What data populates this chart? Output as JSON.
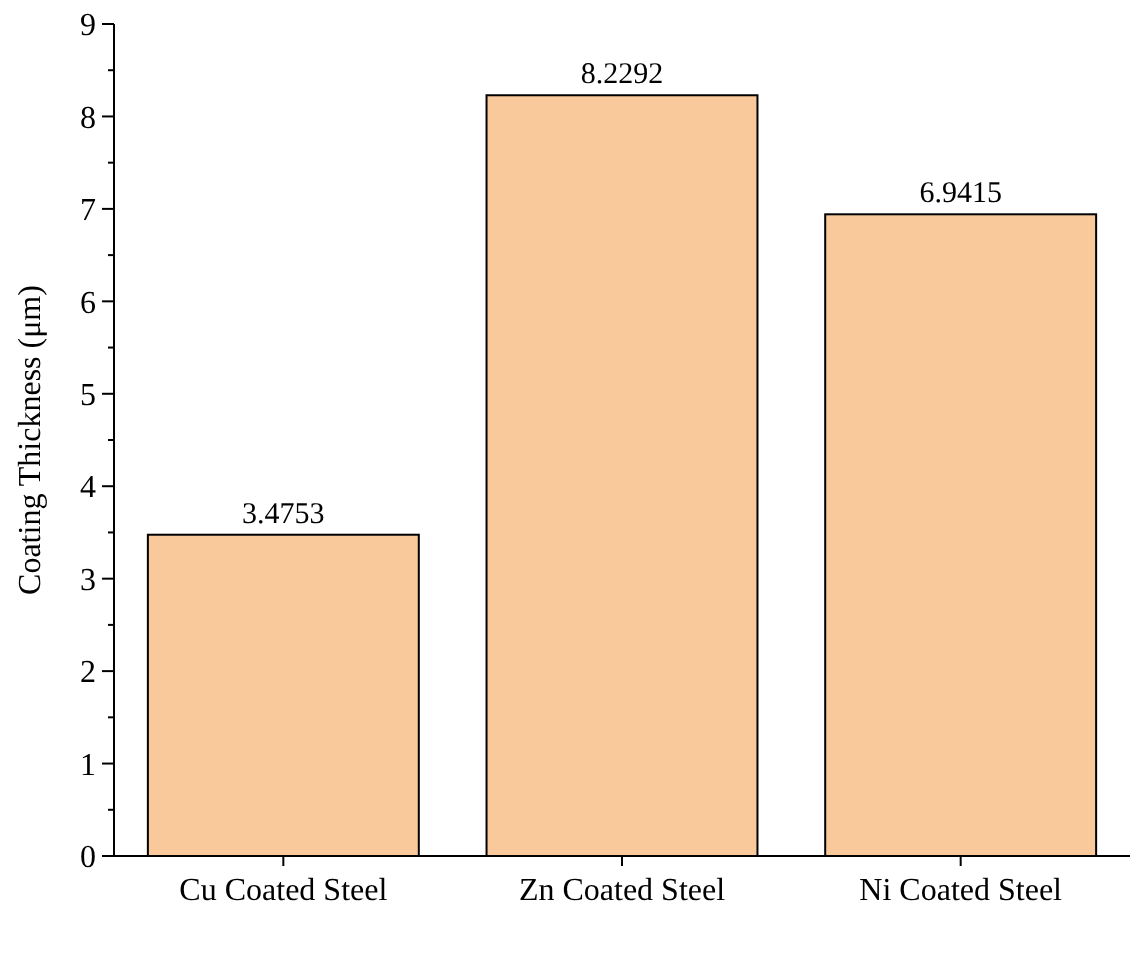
{
  "chart_data": {
    "type": "bar",
    "ylabel": "Coating Thickness (μm)",
    "categories": [
      "Cu Coated Steel",
      "Zn Coated Steel",
      "Ni Coated Steel"
    ],
    "values": [
      3.4753,
      8.2292,
      6.9415
    ],
    "color": "#f9c89b",
    "data_labels": true,
    "grid": false,
    "ylim": [
      0,
      9
    ],
    "yticks": [
      0,
      {
        "value": 0.5,
        "label": null
      },
      1,
      {
        "value": 1.5,
        "label": null
      },
      2,
      {
        "value": 2.5,
        "label": null
      },
      3,
      {
        "value": 3.5,
        "label": null
      },
      4,
      {
        "value": 4.5,
        "label": null
      },
      5,
      {
        "value": 5.5,
        "label": null
      },
      6,
      {
        "value": 6.5,
        "label": null
      },
      7,
      {
        "value": 7.5,
        "label": null
      },
      8,
      {
        "value": 8.5,
        "label": null
      },
      9
    ]
  }
}
